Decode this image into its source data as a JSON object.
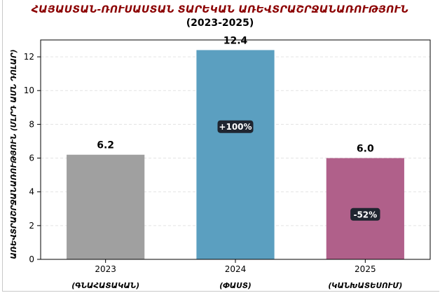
{
  "title": "ՀԱՅԱՍՏԱՆ-ՌՈՒՍԱՍՏԱՆ ՏԱՐԵԿԱՆ ԱՌԵՎՏՐԱՇՐՋԱՆԱՌՈՒԹՅՈՒՆ",
  "subtitle": "(2023-2025)",
  "colors": {
    "title": "#8b0000",
    "bar_2023": "#a0a0a0",
    "bar_2024": "#5b9fc0",
    "bar_2025": "#b0608a",
    "badge_bg": "#1f2530",
    "badge_text": "#ffffff",
    "grid": "#e3e3e3"
  },
  "chart_data": {
    "type": "bar",
    "title": "ՀԱՅԱՍՏԱՆ-ՌՈՒՍԱՍՏԱՆ ՏԱՐԵԿԱՆ ԱՌԵՎՏՐԱՇՐՋԱՆԱՌՈՒԹՅՈՒՆ",
    "subtitle": "(2023-2025)",
    "categories": [
      "2023",
      "2024",
      "2025"
    ],
    "category_sublabels": [
      "(ԳՆԱՀԱՏԱԿԱՆ)",
      "(ՓԱՍՏ)",
      "(ԿԱՆԽԱՏԵՍՈՒՄ)"
    ],
    "values": [
      6.2,
      12.4,
      6.0
    ],
    "value_labels": [
      "6.2",
      "12.4",
      "6.0"
    ],
    "change_badges": [
      "",
      "+100%",
      "-52%"
    ],
    "xlabel": "",
    "ylabel": "ԱՌԵՎՏՐԱՇՐՋԱՆԱՌՈՒԹՅՈՒՆ (ՄԼՐԴ ԱՄՆ ԴՈԼԱՐ)",
    "ylim": [
      0,
      13
    ],
    "yticks": [
      0,
      2,
      4,
      6,
      8,
      10,
      12
    ],
    "grid": "horizontal dashed",
    "legend": "none"
  }
}
